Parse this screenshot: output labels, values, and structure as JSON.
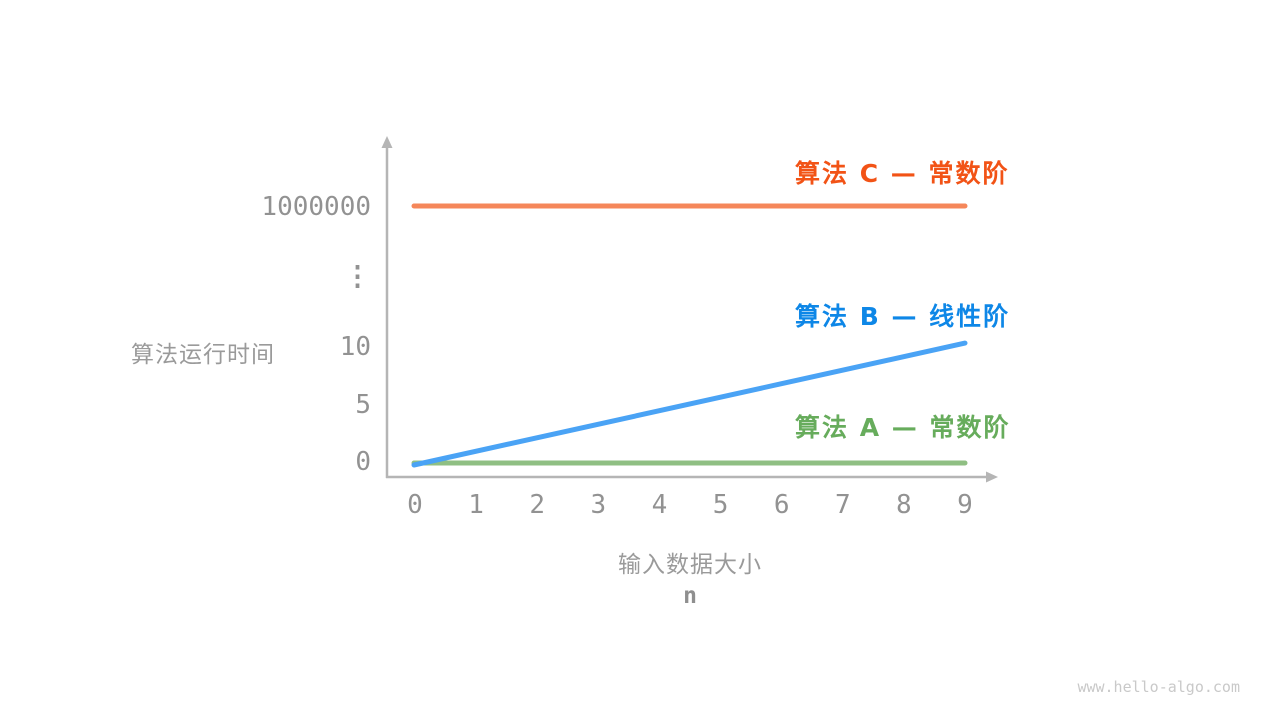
{
  "watermark": "www.hello-algo.com",
  "colors": {
    "axis": "#b5b5b5",
    "tick_text": "#929292",
    "axis_title_text": "#9a9a9a",
    "watermark_text": "#c9c9c9"
  },
  "chart_data": {
    "type": "line",
    "title": "",
    "ylabel": "算法运行时间",
    "xlabel": "输入数据大小",
    "xlabel_variable": "n",
    "x": [
      0,
      1,
      2,
      3,
      4,
      5,
      6,
      7,
      8,
      9
    ],
    "x_tick_labels": [
      "0",
      "1",
      "2",
      "3",
      "4",
      "5",
      "6",
      "7",
      "8",
      "9"
    ],
    "y_tick_labels": [
      "0",
      "5",
      "10",
      "⋮",
      "1000000"
    ],
    "y_axis_note": "broken non-linear axis: 0, 5, 10, ⋮, 1000000",
    "grid": false,
    "legend_position": "right of each line",
    "series": [
      {
        "name": "算法 C — 常数阶",
        "algorithm": "算法 C",
        "complexity": "常数阶",
        "values": [
          1000000,
          1000000,
          1000000,
          1000000,
          1000000,
          1000000,
          1000000,
          1000000,
          1000000,
          1000000
        ],
        "line_color": "#f5875a",
        "label_color": "#f25316"
      },
      {
        "name": "算法 B — 线性阶",
        "algorithm": "算法 B",
        "complexity": "线性阶",
        "values": [
          0,
          1.1,
          2.2,
          3.3,
          4.4,
          5.6,
          6.7,
          7.8,
          8.9,
          10
        ],
        "line_color": "#4aa3f5",
        "label_color": "#0e87e7"
      },
      {
        "name": "算法 A — 常数阶",
        "algorithm": "算法 A",
        "complexity": "常数阶",
        "values": [
          1,
          1,
          1,
          1,
          1,
          1,
          1,
          1,
          1,
          1
        ],
        "line_color": "#8fbf83",
        "label_color": "#67ac5c"
      }
    ]
  }
}
